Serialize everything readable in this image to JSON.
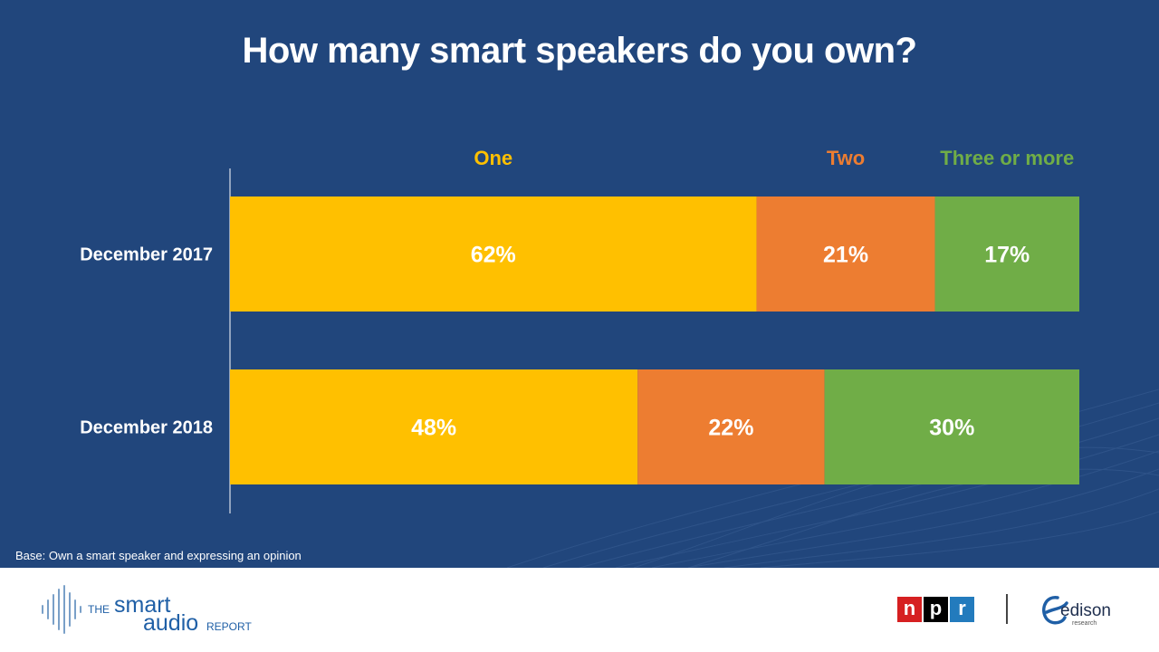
{
  "title": "How many smart speakers do you own?",
  "base_note": "Base: Own a smart speaker and expressing an opinion",
  "colors": {
    "background": "#21467c",
    "one": "#ffc000",
    "two": "#ed7d31",
    "three_or_more": "#70ad47",
    "brand_blue": "#1f5fa6"
  },
  "chart_data": {
    "type": "bar",
    "orientation": "horizontal",
    "stacked": true,
    "normalized_to": 100,
    "title": "How many smart speakers do you own?",
    "categories": [
      "December 2017",
      "December 2018"
    ],
    "series": [
      {
        "name": "One",
        "values": [
          62,
          48
        ],
        "labels": [
          "62%",
          "48%"
        ],
        "color": "#ffc000"
      },
      {
        "name": "Two",
        "values": [
          21,
          22
        ],
        "labels": [
          "21%",
          "22%"
        ],
        "color": "#ed7d31"
      },
      {
        "name": "Three or more",
        "values": [
          17,
          30
        ],
        "labels": [
          "17%",
          "30%"
        ],
        "color": "#70ad47"
      }
    ],
    "xlim": [
      0,
      100
    ],
    "legend": "top",
    "grid": false
  },
  "footer": {
    "smart_audio_logo": {
      "the": "THE",
      "smart": "smart",
      "audio": "audio",
      "report": "REPORT"
    },
    "npr_logo": {
      "letters": [
        "n",
        "p",
        "r"
      ],
      "colors": [
        "#d62021",
        "#000000",
        "#237bbd"
      ]
    },
    "edison_logo": {
      "name": "edison",
      "sub": "research"
    }
  }
}
